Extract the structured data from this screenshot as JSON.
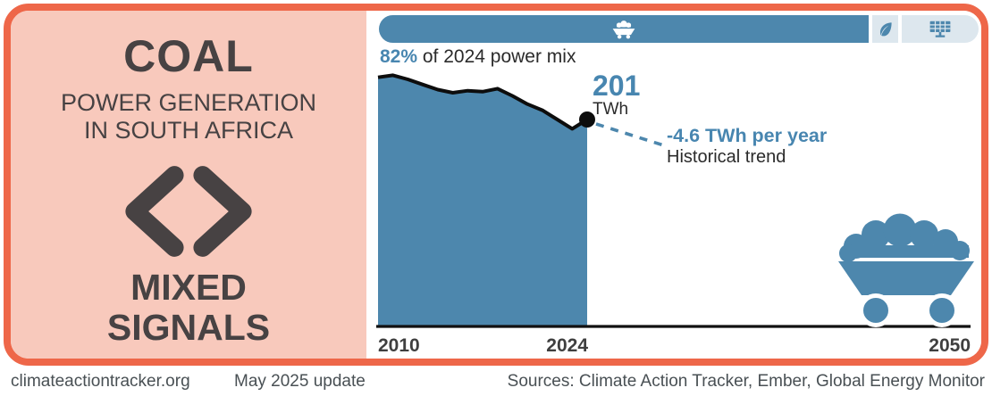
{
  "colors": {
    "accent_blue": "#4d87ad",
    "text_blue": "#4886b0",
    "accent_orange": "#ee6749",
    "panel_pink": "#f8c9bc",
    "panel_text_dark": "#474243",
    "chart_text_dark": "#2b2b2b",
    "pill_light": "#dde7ee",
    "line_black": "#0d0d0d"
  },
  "left_panel": {
    "title": "COAL",
    "subtitle_line1": "POWER GENERATION",
    "subtitle_line2": "IN SOUTH AFRICA",
    "verdict_icon": "mixed-signals-chevrons",
    "verdict_line1": "MIXED",
    "verdict_line2": "SIGNALS"
  },
  "power_mix_bar": {
    "caption_value": "82%",
    "caption_rest": " of 2024 power mix",
    "segments": [
      {
        "name": "coal",
        "icon": "coal-cart-icon",
        "share_pct": 81.5
      },
      {
        "name": "other-renewables",
        "icon": "leaf-icon",
        "share_pct": 4.3
      },
      {
        "name": "solar",
        "icon": "solar-panel-icon",
        "share_pct": 12.9
      }
    ]
  },
  "chart_data": {
    "type": "area",
    "title": "Coal power generation in South Africa",
    "unit": "TWh",
    "x": [
      2010,
      2011,
      2012,
      2013,
      2014,
      2015,
      2016,
      2017,
      2018,
      2019,
      2020,
      2021,
      2022,
      2023,
      2024
    ],
    "values": [
      242,
      244,
      240,
      235,
      230,
      227,
      229,
      228,
      231,
      224,
      216,
      210,
      201,
      192,
      201
    ],
    "xlim": [
      2010,
      2050
    ],
    "ylim": [
      0,
      260
    ],
    "x_ticks": [
      "2010",
      "2024",
      "2050"
    ],
    "grid": false,
    "legend": false,
    "end_label": {
      "value": "201",
      "unit": "TWh"
    },
    "trend": {
      "rate_twh_per_year": -4.6,
      "rate_label": "-4.6 TWh per year",
      "name": "Historical trend"
    }
  },
  "footer": {
    "site": "climateactiontracker.org",
    "update": "May 2025 update",
    "sources": "Sources: Climate Action Tracker, Ember, Global Energy Monitor"
  }
}
